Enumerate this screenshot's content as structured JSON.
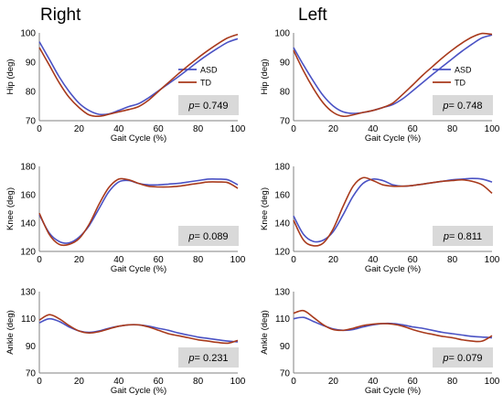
{
  "figure": {
    "left_title": "Right",
    "right_title": "Left"
  },
  "colors": {
    "ASD": "#4a52c4",
    "TD": "#a83a1c",
    "pbox": "#d9d9d9"
  },
  "chart_data": [
    {
      "id": "right-hip",
      "type": "line",
      "side": "Right",
      "xlabel": "Gait Cycle (%)",
      "ylabel": "Hip (deg)",
      "xlim": [
        0,
        100
      ],
      "ylim": [
        70,
        100
      ],
      "xticks": [
        0,
        20,
        40,
        60,
        80,
        100
      ],
      "yticks": [
        70,
        80,
        90,
        100
      ],
      "p_label": "p",
      "p_value": "= 0.749",
      "legend": {
        "show": true,
        "position": "right",
        "entries": [
          "ASD",
          "TD"
        ]
      },
      "series": [
        {
          "name": "ASD",
          "x": [
            0,
            5,
            10,
            15,
            20,
            25,
            30,
            35,
            40,
            45,
            50,
            55,
            60,
            65,
            70,
            75,
            80,
            85,
            90,
            95,
            100
          ],
          "y": [
            97,
            91,
            85,
            80,
            76,
            73.5,
            72.2,
            72.3,
            73.5,
            74.8,
            75.8,
            77.8,
            80.2,
            82.6,
            85,
            87.6,
            90.2,
            92.6,
            94.8,
            96.8,
            98
          ]
        },
        {
          "name": "TD",
          "x": [
            0,
            5,
            10,
            15,
            20,
            25,
            30,
            35,
            40,
            45,
            50,
            55,
            60,
            65,
            70,
            75,
            80,
            85,
            90,
            95,
            100
          ],
          "y": [
            95,
            89,
            83,
            78,
            74.5,
            72,
            71.5,
            72.2,
            73,
            73.8,
            74.8,
            77,
            80,
            83,
            86,
            88.8,
            91.5,
            94,
            96.3,
            98.3,
            99.5
          ]
        }
      ]
    },
    {
      "id": "left-hip",
      "type": "line",
      "side": "Left",
      "xlabel": "Gait Cycle (%)",
      "ylabel": "Hip (deg)",
      "xlim": [
        0,
        100
      ],
      "ylim": [
        70,
        100
      ],
      "xticks": [
        0,
        20,
        40,
        60,
        80,
        100
      ],
      "yticks": [
        70,
        80,
        90,
        100
      ],
      "p_label": "p",
      "p_value": "= 0.748",
      "legend": {
        "show": true,
        "position": "right",
        "entries": [
          "ASD",
          "TD"
        ]
      },
      "series": [
        {
          "name": "ASD",
          "x": [
            0,
            5,
            10,
            15,
            20,
            25,
            30,
            35,
            40,
            45,
            50,
            55,
            60,
            65,
            70,
            75,
            80,
            85,
            90,
            95,
            100
          ],
          "y": [
            95,
            89,
            83.5,
            78.5,
            75,
            73,
            72.5,
            72.8,
            73.5,
            74.5,
            75.5,
            77.5,
            80.2,
            83,
            85.8,
            88.5,
            91.2,
            93.8,
            96.2,
            98.3,
            99.3
          ]
        },
        {
          "name": "TD",
          "x": [
            0,
            5,
            10,
            15,
            20,
            25,
            30,
            35,
            40,
            45,
            50,
            55,
            60,
            65,
            70,
            75,
            80,
            85,
            90,
            95,
            100
          ],
          "y": [
            94,
            87,
            81,
            76,
            72.8,
            71.5,
            72,
            72.8,
            73.5,
            74.5,
            76,
            79,
            82.2,
            85.5,
            88.5,
            91.5,
            94.2,
            96.6,
            98.6,
            99.8,
            99.5
          ]
        }
      ]
    },
    {
      "id": "right-knee",
      "type": "line",
      "side": "Right",
      "xlabel": "Gait Cycle (%)",
      "ylabel": "Knee (deg)",
      "xlim": [
        0,
        100
      ],
      "ylim": [
        120,
        180
      ],
      "xticks": [
        0,
        20,
        40,
        60,
        80,
        100
      ],
      "yticks": [
        120,
        140,
        160,
        180
      ],
      "p_label": "p",
      "p_value": "= 0.089",
      "legend": {
        "show": false
      },
      "series": [
        {
          "name": "ASD",
          "x": [
            0,
            5,
            10,
            15,
            20,
            25,
            30,
            35,
            40,
            45,
            50,
            55,
            60,
            65,
            70,
            75,
            80,
            85,
            90,
            95,
            100
          ],
          "y": [
            146,
            133,
            127,
            126,
            130,
            138,
            150,
            162,
            169,
            170,
            168,
            167,
            167,
            167.5,
            168,
            169,
            170,
            171,
            171,
            170.5,
            167
          ]
        },
        {
          "name": "TD",
          "x": [
            0,
            5,
            10,
            15,
            20,
            25,
            30,
            35,
            40,
            45,
            50,
            55,
            60,
            65,
            70,
            75,
            80,
            85,
            90,
            95,
            100
          ],
          "y": [
            147,
            132,
            125,
            125,
            129,
            139,
            153,
            165,
            171,
            170.5,
            168,
            166,
            165.5,
            165.5,
            166,
            167,
            168,
            169,
            169,
            168.5,
            164.5
          ]
        }
      ]
    },
    {
      "id": "left-knee",
      "type": "line",
      "side": "Left",
      "xlabel": "Gait Cycle (%)",
      "ylabel": "Knee (deg)",
      "xlim": [
        0,
        100
      ],
      "ylim": [
        120,
        180
      ],
      "xticks": [
        0,
        20,
        40,
        60,
        80,
        100
      ],
      "yticks": [
        120,
        140,
        160,
        180
      ],
      "p_label": "p",
      "p_value": "= 0.811",
      "legend": {
        "show": false
      },
      "series": [
        {
          "name": "ASD",
          "x": [
            0,
            5,
            10,
            15,
            20,
            25,
            30,
            35,
            40,
            45,
            50,
            55,
            60,
            65,
            70,
            75,
            80,
            85,
            90,
            95,
            100
          ],
          "y": [
            145,
            132,
            127,
            128,
            134,
            146,
            159,
            168,
            171,
            170,
            167,
            166,
            166.5,
            167.5,
            168.5,
            169.5,
            170.5,
            171,
            171.5,
            171,
            169
          ]
        },
        {
          "name": "TD",
          "x": [
            0,
            5,
            10,
            15,
            20,
            25,
            30,
            35,
            40,
            45,
            50,
            55,
            60,
            65,
            70,
            75,
            80,
            85,
            90,
            95,
            100
          ],
          "y": [
            142,
            128,
            124,
            126,
            136,
            152,
            166,
            172,
            170,
            167,
            166,
            166,
            166.5,
            167.5,
            168.5,
            169.5,
            170,
            170.5,
            169.5,
            167,
            161
          ]
        }
      ]
    },
    {
      "id": "right-ankle",
      "type": "line",
      "side": "Right",
      "xlabel": "Gait Cycle (%)",
      "ylabel": "Ankle (deg)",
      "xlim": [
        0,
        100
      ],
      "ylim": [
        70,
        130
      ],
      "xticks": [
        0,
        20,
        40,
        60,
        80,
        100
      ],
      "yticks": [
        70,
        90,
        110,
        130
      ],
      "p_label": "p",
      "p_value": "= 0.231",
      "legend": {
        "show": false
      },
      "series": [
        {
          "name": "ASD",
          "x": [
            0,
            5,
            10,
            15,
            20,
            25,
            30,
            35,
            40,
            45,
            50,
            55,
            60,
            65,
            70,
            75,
            80,
            85,
            90,
            95,
            100
          ],
          "y": [
            107,
            110,
            108,
            104,
            101,
            100,
            101,
            103,
            104.5,
            105.5,
            105.5,
            104.5,
            103,
            101.5,
            99.5,
            98,
            96.5,
            95.5,
            94.5,
            93.5,
            93
          ]
        },
        {
          "name": "TD",
          "x": [
            0,
            5,
            10,
            15,
            20,
            25,
            30,
            35,
            40,
            45,
            50,
            55,
            60,
            65,
            70,
            75,
            80,
            85,
            90,
            95,
            100
          ],
          "y": [
            109,
            113,
            110,
            105,
            101,
            99.5,
            100.5,
            102.5,
            104.5,
            105.5,
            105.5,
            104,
            101.5,
            99,
            97.5,
            96,
            94.5,
            93.5,
            92.5,
            92,
            94
          ]
        }
      ]
    },
    {
      "id": "left-ankle",
      "type": "line",
      "side": "Left",
      "xlabel": "Gait Cycle (%)",
      "ylabel": "Ankle (deg)",
      "xlim": [
        0,
        100
      ],
      "ylim": [
        70,
        130
      ],
      "xticks": [
        0,
        20,
        40,
        60,
        80,
        100
      ],
      "yticks": [
        70,
        90,
        110,
        130
      ],
      "p_label": "p",
      "p_value": "= 0.079",
      "legend": {
        "show": false
      },
      "series": [
        {
          "name": "ASD",
          "x": [
            0,
            5,
            10,
            15,
            20,
            25,
            30,
            35,
            40,
            45,
            50,
            55,
            60,
            65,
            70,
            75,
            80,
            85,
            90,
            95,
            100
          ],
          "y": [
            110,
            111,
            108,
            105,
            102.5,
            101.5,
            102,
            104,
            105.5,
            106.5,
            106.5,
            105.5,
            104,
            103,
            101.5,
            100,
            99,
            98,
            97,
            96.5,
            96
          ]
        },
        {
          "name": "TD",
          "x": [
            0,
            5,
            10,
            15,
            20,
            25,
            30,
            35,
            40,
            45,
            50,
            55,
            60,
            65,
            70,
            75,
            80,
            85,
            90,
            95,
            100
          ],
          "y": [
            114,
            116,
            111,
            105.5,
            102,
            101.5,
            103,
            105,
            106,
            106.5,
            106,
            104.5,
            102,
            100,
            98.5,
            97,
            96,
            94.5,
            93.5,
            93.5,
            97.5
          ]
        }
      ]
    }
  ]
}
